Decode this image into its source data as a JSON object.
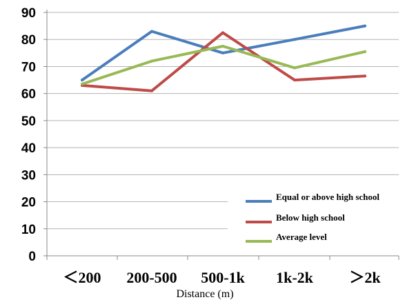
{
  "chart_data": {
    "type": "line",
    "title": "",
    "xlabel": "Distance (m)",
    "ylabel": "",
    "categories": [
      "<200",
      "200-500",
      "500-1k",
      "1k-2k",
      ">2k"
    ],
    "category_labels": [
      "＜200",
      "200-500",
      "500-1k",
      "1k-2k",
      "＞2k"
    ],
    "ylim": [
      0,
      90
    ],
    "yticks": [
      0,
      10,
      20,
      30,
      40,
      50,
      60,
      70,
      80,
      90
    ],
    "grid": true,
    "legend": "bottom-right",
    "series": [
      {
        "name": "Equal or above high school",
        "color": "#4a7ebb",
        "values": [
          65,
          83,
          75,
          80,
          85
        ]
      },
      {
        "name": "Below high school",
        "color": "#be4b48",
        "values": [
          63,
          61,
          82.5,
          65,
          66.5
        ]
      },
      {
        "name": "Average level",
        "color": "#98b954",
        "values": [
          63.5,
          72,
          77.5,
          69.5,
          75.5
        ]
      }
    ]
  }
}
